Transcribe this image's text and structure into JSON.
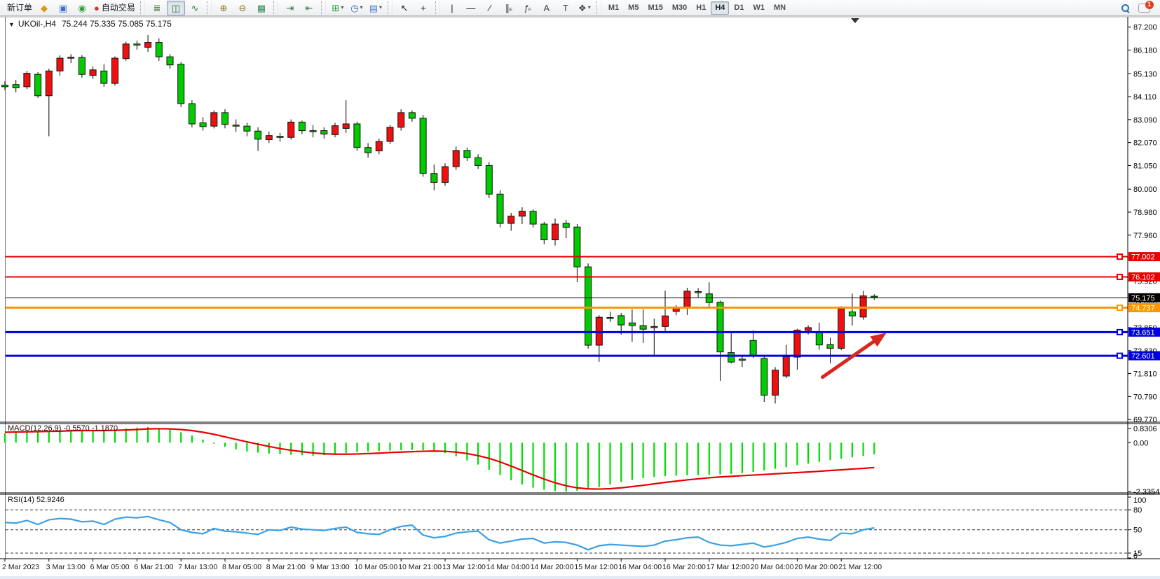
{
  "window": {
    "badge_count": "1"
  },
  "toolbar": {
    "timeframes": [
      "M1",
      "M5",
      "M15",
      "M30",
      "H1",
      "H4",
      "D1",
      "W1",
      "MN"
    ],
    "active_timeframe": "H4",
    "groups": [
      {
        "items": [
          {
            "name": "new-order-button",
            "type": "text",
            "label": "新订单"
          },
          {
            "name": "new-order-icon",
            "glyph": "◆",
            "color": "#d79c16"
          },
          {
            "name": "market-depth-icon",
            "glyph": "▣",
            "color": "#3c6fc9"
          },
          {
            "name": "signals-icon",
            "glyph": "◉",
            "color": "#2fa03a"
          },
          {
            "name": "autotrading-button",
            "type": "icontext",
            "glyph": "●",
            "color": "#cc3a2e",
            "label": "自动交易"
          }
        ]
      },
      {
        "items": [
          {
            "name": "bar-chart-button",
            "glyph": "≣",
            "color": "#4a6d2f"
          },
          {
            "name": "candlestick-chart-button",
            "glyph": "◫",
            "color": "#2f6d2f",
            "active": true
          },
          {
            "name": "line-chart-button",
            "glyph": "∿",
            "color": "#3f7a3f"
          }
        ]
      },
      {
        "items": [
          {
            "name": "zoom-in-button",
            "glyph": "⊕",
            "color": "#8a6d1f"
          },
          {
            "name": "zoom-out-button",
            "glyph": "⊖",
            "color": "#8a6d1f"
          },
          {
            "name": "tile-windows-button",
            "glyph": "▦",
            "color": "#2e8b57"
          }
        ]
      },
      {
        "items": [
          {
            "name": "chart-shift-button",
            "glyph": "⇥",
            "color": "#356b3a"
          },
          {
            "name": "auto-scroll-button",
            "glyph": "⇤",
            "color": "#356b3a"
          }
        ]
      },
      {
        "items": [
          {
            "name": "indicators-button",
            "glyph": "⊞",
            "color": "#1d9e33",
            "caret": true
          },
          {
            "name": "periods-button",
            "glyph": "◷",
            "color": "#2b5fb4",
            "caret": true
          },
          {
            "name": "templates-button",
            "glyph": "▤",
            "color": "#4a7fd4",
            "caret": true
          }
        ]
      },
      {
        "items": [
          {
            "name": "cursor-button",
            "glyph": "↖",
            "color": "#222"
          },
          {
            "name": "crosshair-button",
            "glyph": "+",
            "color": "#222"
          }
        ]
      },
      {
        "items": [
          {
            "name": "vertical-line-button",
            "glyph": "|",
            "color": "#222"
          },
          {
            "name": "horizontal-line-button",
            "glyph": "—",
            "color": "#222"
          },
          {
            "name": "trendline-button",
            "glyph": "∕",
            "color": "#222"
          },
          {
            "name": "channel-button",
            "glyph": "∥",
            "color": "#444",
            "sub": "E"
          },
          {
            "name": "fibonacci-button",
            "glyph": "ƒ",
            "color": "#444",
            "sub": "F"
          },
          {
            "name": "text-button",
            "glyph": "A",
            "color": "#444"
          },
          {
            "name": "text-label-button",
            "glyph": "T",
            "color": "#444"
          },
          {
            "name": "arrows-button",
            "glyph": "❖",
            "color": "#444",
            "caret": true
          }
        ]
      }
    ]
  },
  "chart": {
    "title_symbol": "UKOil-,H4",
    "title_ohlc": "75.244 75.335 75.085 75.175"
  },
  "indicators": {
    "macd_label": "MACD(12,26,9) -0.5570 -1.1870",
    "rsi_label": "RSI(14) 52.9246"
  },
  "chart_data": {
    "type": "candlestick",
    "symbol": "UKOil-",
    "timeframe": "H4",
    "last_ohlc": {
      "open": 75.244,
      "high": 75.335,
      "low": 75.085,
      "close": 75.175
    },
    "time_labels": [
      "2 Mar 2023",
      "3 Mar 13:00",
      "6 Mar 05:00",
      "6 Mar 21:00",
      "7 Mar 13:00",
      "8 Mar 05:00",
      "8 Mar 21:00",
      "9 Mar 13:00",
      "10 Mar 05:00",
      "10 Mar 21:00",
      "13 Mar 12:00",
      "14 Mar 04:00",
      "14 Mar 20:00",
      "15 Mar 12:00",
      "16 Mar 04:00",
      "16 Mar 20:00",
      "17 Mar 12:00",
      "20 Mar 04:00",
      "20 Mar 20:00",
      "21 Mar 12:00"
    ],
    "label_every": 4,
    "candles": [
      [
        84.62,
        84.8,
        84.4,
        84.55
      ],
      [
        84.65,
        84.85,
        84.3,
        84.5
      ],
      [
        84.55,
        85.25,
        84.45,
        85.15
      ],
      [
        85.1,
        85.2,
        84.05,
        84.15
      ],
      [
        84.15,
        85.35,
        82.35,
        85.25
      ],
      [
        85.25,
        85.95,
        85.05,
        85.82
      ],
      [
        85.82,
        86.0,
        85.6,
        85.86
      ],
      [
        85.85,
        85.95,
        84.95,
        85.1
      ],
      [
        85.05,
        85.45,
        84.9,
        85.3
      ],
      [
        85.25,
        85.55,
        84.55,
        84.7
      ],
      [
        84.7,
        85.9,
        84.6,
        85.82
      ],
      [
        85.8,
        86.55,
        85.7,
        86.45
      ],
      [
        86.45,
        86.6,
        86.2,
        86.4
      ],
      [
        86.3,
        86.85,
        86.1,
        86.52
      ],
      [
        86.52,
        86.7,
        85.7,
        85.88
      ],
      [
        85.88,
        86.0,
        85.35,
        85.52
      ],
      [
        85.55,
        85.65,
        83.65,
        83.8
      ],
      [
        83.8,
        83.95,
        82.75,
        82.9
      ],
      [
        82.95,
        83.2,
        82.6,
        82.78
      ],
      [
        82.8,
        83.5,
        82.7,
        83.4
      ],
      [
        83.4,
        83.55,
        82.7,
        82.88
      ],
      [
        82.85,
        83.1,
        82.55,
        82.8
      ],
      [
        82.8,
        82.95,
        82.35,
        82.58
      ],
      [
        82.58,
        82.75,
        81.7,
        82.22
      ],
      [
        82.2,
        82.55,
        82.05,
        82.38
      ],
      [
        82.35,
        82.5,
        82.1,
        82.3
      ],
      [
        82.3,
        83.1,
        82.2,
        82.98
      ],
      [
        82.98,
        83.05,
        82.45,
        82.6
      ],
      [
        82.6,
        82.85,
        82.3,
        82.55
      ],
      [
        82.6,
        82.75,
        82.25,
        82.45
      ],
      [
        82.42,
        82.95,
        82.3,
        82.82
      ],
      [
        82.7,
        83.95,
        82.5,
        82.9
      ],
      [
        82.9,
        83.0,
        81.7,
        81.85
      ],
      [
        81.85,
        82.05,
        81.4,
        81.62
      ],
      [
        81.7,
        82.25,
        81.55,
        82.12
      ],
      [
        82.12,
        82.85,
        82.0,
        82.75
      ],
      [
        82.75,
        83.55,
        82.6,
        83.4
      ],
      [
        83.4,
        83.5,
        83.0,
        83.15
      ],
      [
        83.15,
        83.3,
        80.55,
        80.7
      ],
      [
        80.7,
        81.1,
        79.95,
        80.3
      ],
      [
        80.3,
        81.15,
        80.15,
        81.0
      ],
      [
        81.0,
        81.9,
        80.85,
        81.72
      ],
      [
        81.72,
        81.85,
        81.25,
        81.4
      ],
      [
        81.4,
        81.55,
        80.9,
        81.05
      ],
      [
        81.05,
        81.2,
        79.6,
        79.78
      ],
      [
        79.78,
        79.95,
        78.3,
        78.48
      ],
      [
        78.48,
        78.95,
        78.15,
        78.8
      ],
      [
        78.8,
        79.2,
        78.45,
        79.02
      ],
      [
        79.02,
        79.1,
        78.3,
        78.45
      ],
      [
        78.45,
        78.55,
        77.55,
        77.75
      ],
      [
        77.75,
        78.7,
        77.5,
        78.45
      ],
      [
        78.48,
        78.64,
        77.83,
        78.3
      ],
      [
        78.32,
        78.45,
        75.87,
        76.55
      ],
      [
        76.55,
        76.7,
        72.92,
        73.07
      ],
      [
        73.07,
        74.4,
        72.33,
        74.31
      ],
      [
        74.3,
        74.56,
        74.1,
        74.28
      ],
      [
        74.38,
        74.5,
        73.54,
        73.97
      ],
      [
        74.06,
        74.66,
        73.22,
        73.94
      ],
      [
        73.94,
        74.66,
        73.17,
        73.78
      ],
      [
        73.85,
        74.25,
        72.6,
        73.9
      ],
      [
        73.9,
        75.49,
        73.7,
        74.37
      ],
      [
        74.57,
        74.85,
        74.4,
        74.72
      ],
      [
        74.72,
        75.62,
        74.41,
        75.47
      ],
      [
        75.45,
        75.6,
        75.2,
        75.4
      ],
      [
        75.35,
        75.86,
        74.7,
        74.96
      ],
      [
        74.98,
        75.05,
        71.49,
        72.77
      ],
      [
        72.74,
        73.6,
        72.26,
        72.32
      ],
      [
        72.45,
        72.6,
        72.1,
        72.4
      ],
      [
        73.28,
        73.73,
        72.5,
        72.58
      ],
      [
        72.48,
        72.6,
        70.55,
        70.85
      ],
      [
        70.85,
        72.1,
        70.48,
        71.96
      ],
      [
        71.7,
        73.08,
        71.6,
        72.56
      ],
      [
        72.54,
        73.8,
        71.98,
        73.74
      ],
      [
        73.73,
        73.95,
        73.55,
        73.85
      ],
      [
        73.65,
        74.07,
        72.87,
        73.08
      ],
      [
        73.1,
        73.4,
        72.26,
        72.93
      ],
      [
        72.93,
        74.8,
        72.85,
        74.69
      ],
      [
        74.55,
        75.36,
        73.94,
        74.37
      ],
      [
        74.32,
        75.48,
        74.2,
        75.26
      ],
      [
        75.244,
        75.335,
        75.085,
        75.175
      ]
    ],
    "price_axis_ticks": [
      87.2,
      86.18,
      85.13,
      84.11,
      83.09,
      82.07,
      81.05,
      80.0,
      78.98,
      77.96,
      76.94,
      75.92,
      74.9,
      73.85,
      72.83,
      71.81,
      70.79,
      69.77
    ],
    "price_lines": [
      {
        "price": 77.002,
        "label": "77.002",
        "color": "#e80000",
        "width": 2,
        "handle": true
      },
      {
        "price": 76.102,
        "label": "76.102",
        "color": "#e80000",
        "width": 2,
        "handle": true
      },
      {
        "price": 74.737,
        "label": "74.737",
        "color": "#ff9500",
        "width": 3,
        "handle": true
      },
      {
        "price": 73.651,
        "label": "73.651",
        "color": "#0000dd",
        "width": 3,
        "handle": true
      },
      {
        "price": 72.601,
        "label": "72.601",
        "color": "#0000dd",
        "width": 3,
        "handle": true
      }
    ],
    "current_price_line": {
      "price": 75.175,
      "label": "75.175",
      "color": "#000000",
      "width": 1
    },
    "macd": {
      "label": "MACD(12,26,9) -0.5570 -1.1870",
      "ticks": [
        "0.8306",
        "0.00",
        "-2.3354"
      ],
      "tick_values": [
        0.8306,
        0,
        -2.3354
      ],
      "hist": [
        0.45,
        0.5,
        0.55,
        0.52,
        0.58,
        0.6,
        0.62,
        0.6,
        0.58,
        0.55,
        0.6,
        0.68,
        0.72,
        0.75,
        0.7,
        0.62,
        0.5,
        0.35,
        0.15,
        -0.05,
        -0.2,
        -0.32,
        -0.42,
        -0.48,
        -0.52,
        -0.55,
        -0.58,
        -0.6,
        -0.62,
        -0.6,
        -0.55,
        -0.5,
        -0.45,
        -0.42,
        -0.4,
        -0.38,
        -0.36,
        -0.35,
        -0.36,
        -0.4,
        -0.5,
        -0.65,
        -0.85,
        -1.05,
        -1.3,
        -1.55,
        -1.8,
        -2.0,
        -2.15,
        -2.25,
        -2.32,
        -2.34,
        -2.3,
        -2.22,
        -2.12,
        -2.0,
        -1.88,
        -1.78,
        -1.7,
        -1.64,
        -1.6,
        -1.58,
        -1.56,
        -1.55,
        -1.54,
        -1.52,
        -1.5,
        -1.46,
        -1.4,
        -1.33,
        -1.25,
        -1.17,
        -1.08,
        -1.0,
        -0.92,
        -0.84,
        -0.77,
        -0.7,
        -0.63,
        -0.56
      ],
      "signal": [
        0.5,
        0.51,
        0.52,
        0.53,
        0.54,
        0.55,
        0.57,
        0.58,
        0.58,
        0.58,
        0.59,
        0.61,
        0.63,
        0.66,
        0.67,
        0.66,
        0.63,
        0.58,
        0.5,
        0.4,
        0.28,
        0.16,
        0.04,
        -0.07,
        -0.18,
        -0.28,
        -0.36,
        -0.43,
        -0.49,
        -0.53,
        -0.55,
        -0.55,
        -0.54,
        -0.52,
        -0.5,
        -0.47,
        -0.45,
        -0.43,
        -0.41,
        -0.4,
        -0.41,
        -0.45,
        -0.52,
        -0.62,
        -0.75,
        -0.92,
        -1.12,
        -1.33,
        -1.54,
        -1.74,
        -1.92,
        -2.06,
        -2.16,
        -2.21,
        -2.22,
        -2.2,
        -2.16,
        -2.1,
        -2.04,
        -1.97,
        -1.9,
        -1.84,
        -1.78,
        -1.73,
        -1.68,
        -1.64,
        -1.61,
        -1.58,
        -1.55,
        -1.52,
        -1.49,
        -1.46,
        -1.43,
        -1.4,
        -1.37,
        -1.33,
        -1.3,
        -1.26,
        -1.23,
        -1.19
      ]
    },
    "rsi": {
      "label": "RSI(14) 52.9246",
      "ticks": [
        "100",
        "80",
        "50",
        "15",
        "0"
      ],
      "dashed_levels": [
        80,
        50,
        15
      ],
      "values": [
        61,
        60,
        64,
        58,
        65,
        67,
        66,
        62,
        63,
        58,
        66,
        69,
        68,
        70,
        65,
        61,
        50,
        46,
        44,
        52,
        48,
        47,
        45,
        43,
        50,
        49,
        54,
        51,
        50,
        49,
        52,
        54,
        46,
        44,
        43,
        50,
        55,
        57,
        42,
        38,
        40,
        45,
        47,
        48,
        35,
        30,
        33,
        36,
        37,
        30,
        32,
        31,
        27,
        20,
        26,
        28,
        27,
        26,
        25,
        27,
        33,
        35,
        38,
        39,
        31,
        27,
        26,
        28,
        30,
        24,
        27,
        31,
        37,
        39,
        36,
        34,
        45,
        44,
        50,
        52.9246
      ]
    },
    "arrow_annotation": {
      "from_index": 74.3,
      "from_price": 71.65,
      "to_index": 80.1,
      "to_price": 73.62,
      "color": "#d8281e"
    },
    "colors": {
      "up_candle": "#ee1010",
      "down_candle": "#00cc00",
      "wick": "#000000",
      "macd_hist": "#00dd00",
      "macd_signal": "#e80000",
      "rsi_line": "#3aa0e8",
      "axis_text": "#000000"
    }
  }
}
